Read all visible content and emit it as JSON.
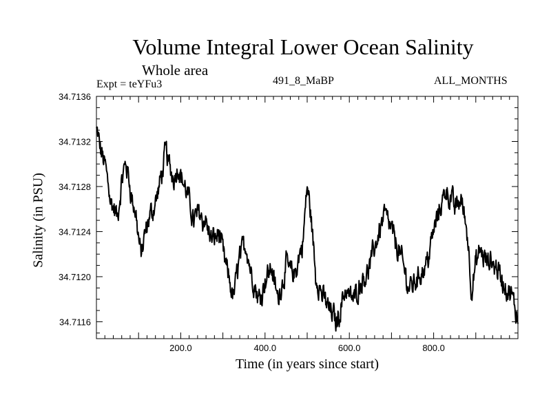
{
  "chart_data": {
    "type": "line",
    "title": "Volume Integral Lower Ocean Salinity",
    "subtitle": "Whole area",
    "experiment_label": "Expt = teYFu3",
    "run_label": "491_8_MaBP",
    "period_label": "ALL_MONTHS",
    "xlabel": "Time (in years since start)",
    "ylabel": "Salinity (in PSU)",
    "xlim": [
      0,
      1000
    ],
    "ylim": [
      34.71145,
      34.7136
    ],
    "x_ticks": [
      200,
      400,
      600,
      800
    ],
    "x_tick_labels": [
      "200.0",
      "400.0",
      "600.0",
      "800.0"
    ],
    "y_ticks": [
      34.7116,
      34.712,
      34.7124,
      34.7128,
      34.7132,
      34.7136
    ],
    "y_tick_labels": [
      "34.7116",
      "34.7120",
      "34.7124",
      "34.7128",
      "34.7132",
      "34.7136"
    ],
    "grid": false,
    "series": [
      {
        "name": "Volume Integral Lower Ocean Salinity",
        "x": [
          0,
          10,
          20,
          35,
          50,
          60,
          70,
          80,
          95,
          105,
          120,
          135,
          150,
          165,
          180,
          195,
          210,
          230,
          245,
          260,
          275,
          290,
          305,
          325,
          340,
          355,
          370,
          385,
          400,
          415,
          430,
          450,
          470,
          490,
          500,
          510,
          520,
          540,
          555,
          570,
          590,
          610,
          630,
          650,
          670,
          685,
          700,
          720,
          740,
          760,
          780,
          800,
          815,
          830,
          850,
          865,
          880,
          890,
          900,
          910,
          930,
          950,
          970,
          985,
          1000
        ],
        "values": [
          34.7133,
          34.7131,
          34.713,
          34.7127,
          34.7125,
          34.7128,
          34.713,
          34.7128,
          34.7125,
          34.7122,
          34.7124,
          34.7126,
          34.7128,
          34.7131,
          34.7129,
          34.713,
          34.7128,
          34.7125,
          34.7126,
          34.7125,
          34.7123,
          34.7124,
          34.7121,
          34.7118,
          34.7122,
          34.7123,
          34.712,
          34.7118,
          34.712,
          34.7121,
          34.7118,
          34.7121,
          34.712,
          34.7123,
          34.7128,
          34.7125,
          34.712,
          34.7118,
          34.7117,
          34.7116,
          34.7119,
          34.7118,
          34.712,
          34.7121,
          34.7124,
          34.7126,
          34.7124,
          34.7122,
          34.7119,
          34.712,
          34.7121,
          34.7124,
          34.7126,
          34.7128,
          34.7126,
          34.7127,
          34.7124,
          34.7119,
          34.7121,
          34.7122,
          34.7121,
          34.7121,
          34.7119,
          34.7118,
          34.7116
        ]
      }
    ]
  }
}
